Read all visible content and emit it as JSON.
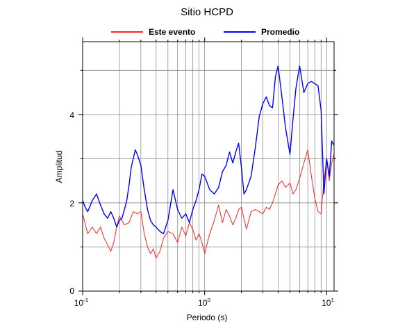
{
  "chart_data": {
    "type": "line",
    "title": "Sitio HCPD",
    "xlabel": "Periodo (s)",
    "ylabel": "Amplitud",
    "xscale": "log",
    "xlim": [
      0.1,
      11.5
    ],
    "ylim": [
      0,
      5.65
    ],
    "grid": true,
    "legend_position": "top-center",
    "x_ticks": [
      {
        "value": 0.1,
        "base": "10",
        "exp": "-1"
      },
      {
        "value": 1,
        "base": "10",
        "exp": "0"
      },
      {
        "value": 10,
        "base": "10",
        "exp": "1"
      }
    ],
    "y_ticks": [
      {
        "value": 0,
        "label": "0"
      },
      {
        "value": 2,
        "label": "2"
      },
      {
        "value": 4,
        "label": "4"
      }
    ],
    "series": [
      {
        "name": "Este evento",
        "color": "#ff2020",
        "x": [
          0.1,
          0.11,
          0.12,
          0.13,
          0.14,
          0.15,
          0.16,
          0.17,
          0.18,
          0.19,
          0.2,
          0.22,
          0.24,
          0.26,
          0.28,
          0.3,
          0.32,
          0.34,
          0.36,
          0.38,
          0.4,
          0.43,
          0.46,
          0.5,
          0.55,
          0.6,
          0.65,
          0.7,
          0.75,
          0.8,
          0.85,
          0.9,
          0.95,
          1.0,
          1.1,
          1.2,
          1.3,
          1.4,
          1.5,
          1.6,
          1.7,
          1.8,
          1.9,
          2.0,
          2.2,
          2.4,
          2.6,
          2.8,
          3.0,
          3.2,
          3.4,
          3.6,
          3.8,
          4.0,
          4.3,
          4.6,
          5.0,
          5.3,
          5.6,
          6.0,
          6.5,
          7.0,
          7.5,
          8.0,
          8.5,
          9.0,
          9.5,
          10.0,
          10.5,
          11.0,
          11.5
        ],
        "values": [
          1.75,
          1.3,
          1.45,
          1.3,
          1.45,
          1.2,
          1.05,
          0.9,
          1.1,
          1.45,
          1.7,
          1.5,
          1.55,
          1.8,
          1.75,
          1.8,
          1.3,
          1.0,
          0.85,
          0.95,
          0.75,
          0.9,
          1.2,
          1.35,
          1.3,
          1.1,
          1.45,
          1.25,
          1.55,
          1.4,
          1.15,
          1.3,
          1.1,
          0.85,
          1.3,
          1.6,
          1.95,
          1.55,
          1.85,
          1.7,
          1.5,
          1.65,
          1.85,
          1.9,
          1.4,
          1.8,
          1.85,
          1.8,
          1.75,
          1.9,
          1.85,
          2.0,
          2.2,
          2.4,
          2.5,
          2.35,
          2.45,
          2.2,
          2.3,
          2.55,
          2.9,
          3.2,
          2.6,
          2.1,
          1.8,
          1.75,
          2.5,
          3.0,
          2.5,
          2.9,
          3.1
        ]
      },
      {
        "name": "Promedio",
        "color": "#0000ff",
        "x": [
          0.1,
          0.105,
          0.11,
          0.12,
          0.13,
          0.14,
          0.15,
          0.16,
          0.17,
          0.18,
          0.19,
          0.2,
          0.21,
          0.22,
          0.23,
          0.24,
          0.25,
          0.26,
          0.27,
          0.28,
          0.3,
          0.32,
          0.34,
          0.36,
          0.38,
          0.4,
          0.43,
          0.46,
          0.5,
          0.55,
          0.6,
          0.65,
          0.7,
          0.75,
          0.8,
          0.85,
          0.9,
          0.95,
          1.0,
          1.1,
          1.2,
          1.3,
          1.4,
          1.5,
          1.6,
          1.7,
          1.8,
          1.9,
          2.0,
          2.1,
          2.2,
          2.4,
          2.6,
          2.8,
          3.0,
          3.2,
          3.4,
          3.6,
          3.8,
          4.0,
          4.3,
          4.6,
          5.0,
          5.3,
          5.6,
          6.0,
          6.5,
          7.0,
          7.5,
          8.0,
          8.5,
          9.0,
          9.5,
          10.0,
          10.5,
          11.0,
          11.5
        ],
        "values": [
          2.05,
          1.9,
          1.8,
          2.05,
          2.2,
          1.95,
          1.75,
          1.65,
          1.8,
          1.65,
          1.45,
          1.6,
          1.65,
          1.85,
          2.05,
          2.4,
          2.8,
          3.0,
          3.2,
          3.1,
          2.85,
          2.3,
          1.85,
          1.6,
          1.5,
          1.45,
          1.35,
          1.3,
          1.6,
          2.3,
          1.85,
          1.65,
          1.75,
          1.55,
          1.85,
          2.05,
          2.3,
          2.65,
          2.6,
          2.3,
          2.2,
          2.35,
          2.7,
          2.85,
          3.15,
          2.9,
          3.15,
          3.35,
          2.8,
          2.2,
          2.3,
          2.6,
          3.25,
          3.95,
          4.25,
          4.4,
          4.2,
          4.15,
          4.85,
          5.1,
          4.4,
          3.7,
          3.1,
          3.9,
          4.6,
          5.1,
          4.5,
          4.7,
          4.75,
          4.7,
          4.65,
          4.1,
          2.2,
          3.0,
          2.6,
          3.4,
          3.3
        ]
      }
    ]
  }
}
